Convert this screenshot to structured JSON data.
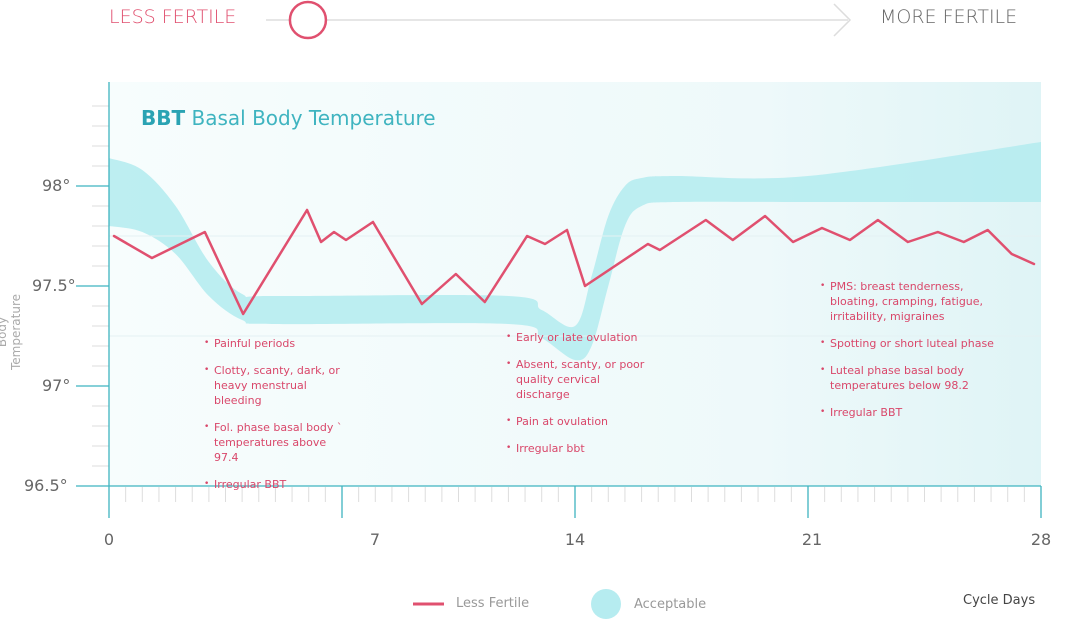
{
  "scale": {
    "left_label": "LESS FERTILE",
    "right_label": "MORE FERTILE",
    "position": 0.06
  },
  "colors": {
    "line": "#e0506f",
    "band": "#b6ecf0",
    "axis": "#3fb4c0",
    "background": "#eef9fa"
  },
  "chart_data": {
    "type": "line",
    "title": {
      "abbr": "BBT",
      "text": "Basal Body Temperature"
    },
    "ylabel": "Body Temperature",
    "xlabel": "Cycle Days",
    "xlim": [
      0,
      28
    ],
    "ylim": [
      96.5,
      98.5
    ],
    "xticks": [
      "0",
      "7",
      "14",
      "21",
      "28"
    ],
    "yticks": [
      "98°",
      "97.5°",
      "97°",
      "96.5°"
    ],
    "grid": false,
    "legend": {
      "placement": "bottom",
      "entries": [
        "Less Fertile",
        "Acceptable"
      ]
    },
    "series": [
      {
        "name": "Less Fertile",
        "type": "line",
        "x": [
          0.15,
          1.29,
          2.88,
          4.03,
          5.95,
          6.37,
          6.76,
          7.12,
          7.93,
          9.4,
          10.42,
          11.29,
          12.56,
          13.1,
          13.76,
          14.3,
          16.19,
          16.55,
          17.93,
          18.74,
          19.71,
          20.55,
          21.42,
          22.26,
          23.1,
          24.0,
          24.9,
          25.68,
          26.4,
          27.12,
          27.79
        ],
        "y": [
          97.75,
          97.64,
          97.77,
          97.36,
          97.88,
          97.72,
          97.77,
          97.73,
          97.82,
          97.41,
          97.56,
          97.42,
          97.75,
          97.71,
          97.78,
          97.5,
          97.71,
          97.68,
          97.83,
          97.73,
          97.85,
          97.72,
          97.79,
          97.73,
          97.83,
          97.72,
          97.77,
          97.72,
          97.78,
          97.66,
          97.61
        ]
      },
      {
        "name": "Acceptable",
        "type": "band",
        "x": [
          0,
          1,
          2,
          3,
          4,
          5,
          12,
          13,
          14,
          14.5,
          15,
          15.5,
          16,
          17,
          21,
          28
        ],
        "upper": [
          98.14,
          98.08,
          97.9,
          97.62,
          97.46,
          97.45,
          97.45,
          97.38,
          97.3,
          97.55,
          97.85,
          98.0,
          98.04,
          98.05,
          98.05,
          98.22
        ],
        "lower": [
          97.8,
          97.77,
          97.66,
          97.45,
          97.33,
          97.31,
          97.31,
          97.24,
          97.13,
          97.2,
          97.5,
          97.8,
          97.9,
          97.92,
          97.92,
          97.92
        ]
      }
    ],
    "annotations": {
      "follicular": [
        "Painful periods",
        "Clotty, scanty, dark, or heavy menstrual bleeding",
        "Fol. phase basal body ` temperatures above 97.4",
        "Irregular BBT"
      ],
      "ovulation": [
        "Early or late ovulation",
        "Absent, scanty, or poor quality cervical discharge",
        "Pain at ovulation",
        "Irregular bbt"
      ],
      "luteal": [
        "PMS: breast tenderness, bloating, cramping, fatigue, irritability, migraines",
        "Spotting or short luteal phase",
        "Luteal phase basal body temperatures below 98.2",
        "Irregular BBT"
      ]
    }
  }
}
